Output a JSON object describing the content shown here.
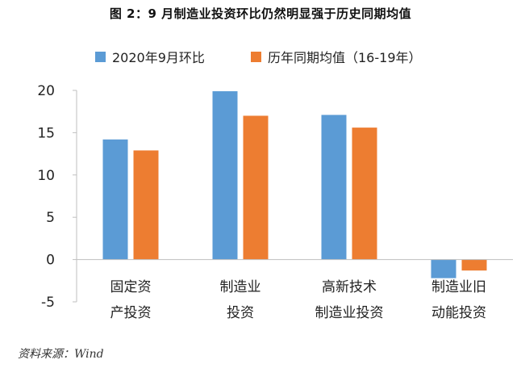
{
  "title": "图 2：9 月制造业投资环比仍然明显强于历史同期均值",
  "source": "资料来源：Wind",
  "chart_data": {
    "type": "bar",
    "title": "图 2：9 月制造业投资环比仍然明显强于历史同期均值",
    "categories": [
      [
        "固定资",
        "产投资"
      ],
      [
        "制造业",
        "投资"
      ],
      [
        "高新技术",
        "制造业投资"
      ],
      [
        "制造业旧",
        "动能投资"
      ]
    ],
    "series": [
      {
        "name": "2020年9月环比",
        "color": "#5B9BD5",
        "values": [
          14.2,
          19.9,
          17.1,
          -2.2
        ]
      },
      {
        "name": "历年同期均值（16-19年）",
        "color": "#ED7D31",
        "values": [
          12.9,
          17.0,
          15.6,
          -1.3
        ]
      }
    ],
    "yticks": [
      20,
      15,
      10,
      5,
      0,
      -5
    ],
    "ylim": [
      -5,
      20
    ],
    "xlabel": "",
    "ylabel": "",
    "grid": false,
    "legend_position": "top"
  }
}
